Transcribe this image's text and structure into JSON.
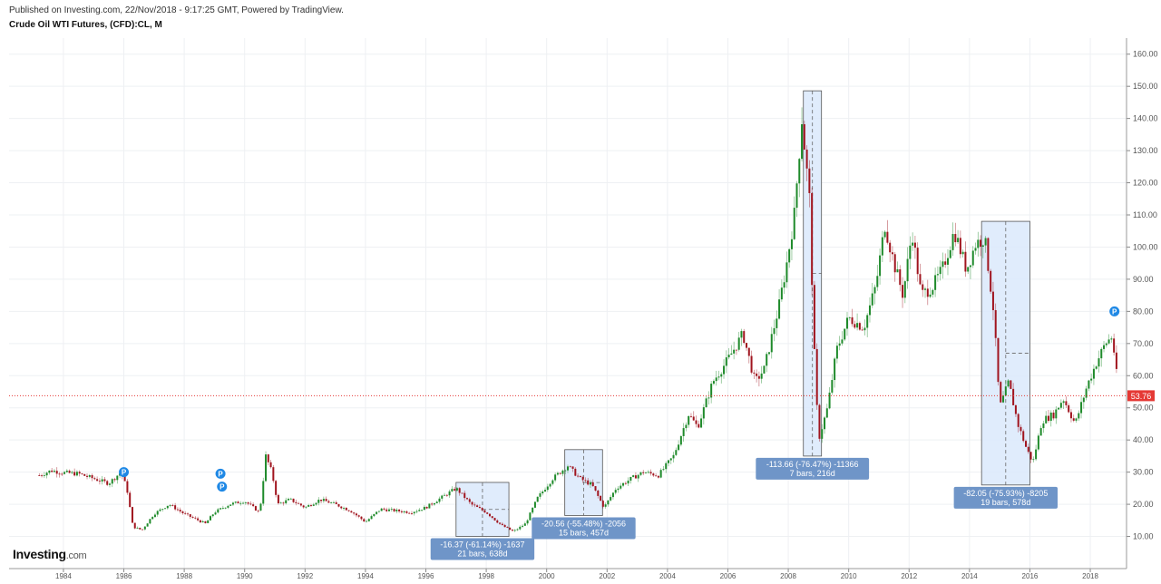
{
  "header": {
    "published": "Published on Investing.com, 22/Nov/2018 - 9:17:25 GMT, Powered by TradingView.",
    "symbol": "Crude Oil WTI Futures, (CFD):CL, M"
  },
  "logo": {
    "main": "Investing",
    "suffix": ".com"
  },
  "colors": {
    "up": "#1e8a2a",
    "down": "#a0141e",
    "price_line": "#e53935",
    "annotation_box": "#6f95c8",
    "range_fill": "#dbe9fb",
    "p_marker": "#1e88e5"
  },
  "chart_data": {
    "type": "candlestick",
    "title": "Crude Oil WTI Futures, (CFD):CL, M",
    "ylim": [
      0,
      165
    ],
    "xlim": [
      1982.2,
      2019.2
    ],
    "y_ticks": [
      "10.00",
      "20.00",
      "30.00",
      "40.00",
      "50.00",
      "60.00",
      "70.00",
      "80.00",
      "90.00",
      "100.00",
      "110.00",
      "120.00",
      "130.00",
      "140.00",
      "150.00",
      "160.00"
    ],
    "x_ticks": [
      "1984",
      "1986",
      "1988",
      "1990",
      "1992",
      "1994",
      "1996",
      "1998",
      "2000",
      "2002",
      "2004",
      "2006",
      "2008",
      "2010",
      "2012",
      "2014",
      "2016",
      "2018"
    ],
    "last_price": 53.76,
    "last_price_label": "53.76",
    "price_path": [
      [
        1983.2,
        29.0
      ],
      [
        1983.6,
        30.5
      ],
      [
        1984.0,
        29.8
      ],
      [
        1984.5,
        29.5
      ],
      [
        1985.0,
        28.0
      ],
      [
        1985.5,
        26.5
      ],
      [
        1985.9,
        30.0
      ],
      [
        1986.1,
        25.0
      ],
      [
        1986.3,
        13.0
      ],
      [
        1986.6,
        12.0
      ],
      [
        1987.0,
        17.0
      ],
      [
        1987.5,
        20.0
      ],
      [
        1988.0,
        17.0
      ],
      [
        1988.7,
        14.0
      ],
      [
        1989.0,
        17.5
      ],
      [
        1989.5,
        20.0
      ],
      [
        1990.0,
        21.0
      ],
      [
        1990.5,
        17.5
      ],
      [
        1990.7,
        35.0
      ],
      [
        1990.9,
        30.0
      ],
      [
        1991.1,
        20.0
      ],
      [
        1991.5,
        21.5
      ],
      [
        1992.0,
        19.0
      ],
      [
        1992.5,
        21.5
      ],
      [
        1993.0,
        20.0
      ],
      [
        1993.5,
        18.0
      ],
      [
        1994.0,
        14.5
      ],
      [
        1994.5,
        18.5
      ],
      [
        1995.0,
        18.0
      ],
      [
        1995.5,
        17.5
      ],
      [
        1996.0,
        19.0
      ],
      [
        1996.5,
        22.0
      ],
      [
        1997.0,
        25.0
      ],
      [
        1997.5,
        20.0
      ],
      [
        1998.0,
        17.5
      ],
      [
        1998.5,
        13.5
      ],
      [
        1998.9,
        11.5
      ],
      [
        1999.3,
        14.0
      ],
      [
        1999.7,
        22.0
      ],
      [
        2000.2,
        28.0
      ],
      [
        2000.7,
        32.0
      ],
      [
        2001.1,
        28.0
      ],
      [
        2001.5,
        26.0
      ],
      [
        2001.9,
        19.0
      ],
      [
        2002.3,
        25.0
      ],
      [
        2002.8,
        28.0
      ],
      [
        2003.2,
        30.0
      ],
      [
        2003.7,
        29.0
      ],
      [
        2004.2,
        35.0
      ],
      [
        2004.7,
        48.0
      ],
      [
        2005.0,
        44.0
      ],
      [
        2005.5,
        58.0
      ],
      [
        2006.0,
        65.0
      ],
      [
        2006.5,
        73.0
      ],
      [
        2006.9,
        58.0
      ],
      [
        2007.2,
        62.0
      ],
      [
        2007.7,
        82.0
      ],
      [
        2007.95,
        95.0
      ],
      [
        2008.2,
        110.0
      ],
      [
        2008.45,
        140.0
      ],
      [
        2008.7,
        115.0
      ],
      [
        2008.85,
        70.0
      ],
      [
        2009.0,
        40.0
      ],
      [
        2009.3,
        50.0
      ],
      [
        2009.6,
        68.0
      ],
      [
        2010.0,
        78.0
      ],
      [
        2010.5,
        75.0
      ],
      [
        2010.9,
        88.0
      ],
      [
        2011.2,
        107.0
      ],
      [
        2011.5,
        95.0
      ],
      [
        2011.8,
        85.0
      ],
      [
        2012.1,
        105.0
      ],
      [
        2012.4,
        85.0
      ],
      [
        2012.8,
        88.0
      ],
      [
        2013.1,
        93.0
      ],
      [
        2013.5,
        105.0
      ],
      [
        2013.9,
        93.0
      ],
      [
        2014.2,
        101.0
      ],
      [
        2014.5,
        103.0
      ],
      [
        2014.8,
        80.0
      ],
      [
        2015.0,
        50.0
      ],
      [
        2015.3,
        58.0
      ],
      [
        2015.6,
        45.0
      ],
      [
        2015.9,
        37.0
      ],
      [
        2016.1,
        33.0
      ],
      [
        2016.4,
        46.0
      ],
      [
        2016.8,
        48.0
      ],
      [
        2017.1,
        53.0
      ],
      [
        2017.5,
        45.0
      ],
      [
        2017.9,
        57.0
      ],
      [
        2018.2,
        64.0
      ],
      [
        2018.5,
        70.0
      ],
      [
        2018.7,
        72.0
      ],
      [
        2018.85,
        64.0
      ],
      [
        2018.9,
        53.76
      ]
    ],
    "markers": [
      {
        "x": 1986.0,
        "y": 30.0,
        "label": "P"
      },
      {
        "x": 1989.2,
        "y": 29.5,
        "label": "P"
      },
      {
        "x": 1989.25,
        "y": 25.5,
        "label": "P"
      },
      {
        "x": 2018.8,
        "y": 80.0,
        "label": "P"
      }
    ],
    "annotations": [
      {
        "x0": 1997.0,
        "x1": 1998.75,
        "y0": 10.0,
        "y1": 26.8,
        "label1": "-16.37 (-61.14%) -1637",
        "label2": "21 bars, 638d"
      },
      {
        "x0": 2000.6,
        "x1": 2001.85,
        "y0": 16.5,
        "y1": 37.0,
        "label1": "-20.56 (-55.48%) -2056",
        "label2": "15 bars, 457d"
      },
      {
        "x0": 2008.5,
        "x1": 2009.1,
        "y0": 35.0,
        "y1": 148.6,
        "label1": "-113.66 (-76.47%) -11366",
        "label2": "7 bars, 216d"
      },
      {
        "x0": 2014.4,
        "x1": 2016.0,
        "y0": 26.0,
        "y1": 108.0,
        "label1": "-82.05 (-75.93%) -8205",
        "label2": "19 bars, 578d"
      }
    ]
  }
}
